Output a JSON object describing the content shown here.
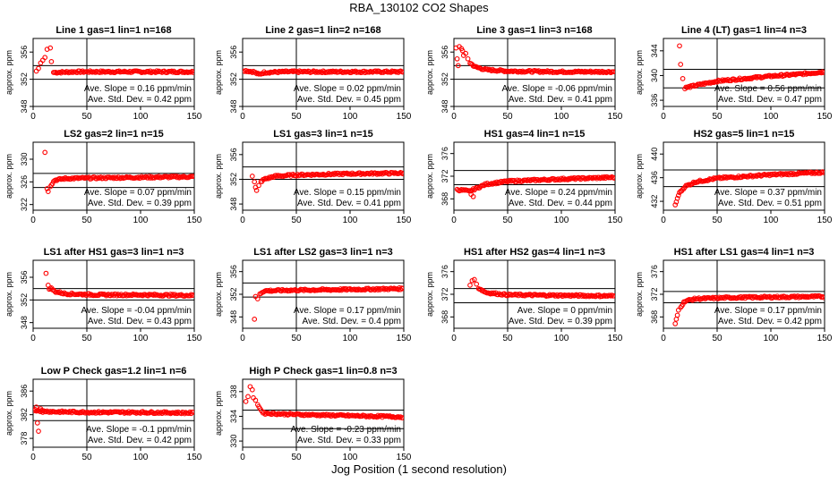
{
  "title": "RBA_130102  CO2 Shapes",
  "xlabel": "Jog Position (1 second resolution)",
  "colors": {
    "points": "#ff0000",
    "axes": "#000000"
  },
  "chart_data": [
    {
      "type": "scatter",
      "title": "Line 1 gas=1 lin=1 n=168",
      "ylabel": "approx. ppm",
      "xlim": [
        0,
        150
      ],
      "ylim": [
        348,
        358
      ],
      "xticks": [
        0,
        50,
        100,
        150
      ],
      "yticks": [
        348,
        352,
        356
      ],
      "hlines": [
        354,
        352
      ],
      "vline": 50,
      "slope_text": "Ave. Slope = 0.16  ppm/min",
      "sd_text": "Ave. Std. Dev. = 0.42  ppm",
      "points": [
        [
          3,
          353.2
        ],
        [
          5,
          353.6
        ],
        [
          7,
          354.4
        ],
        [
          9,
          354.8
        ],
        [
          11,
          355.2
        ],
        [
          13,
          356.4
        ],
        [
          16,
          356.6
        ],
        [
          17,
          354.6
        ],
        [
          19,
          353
        ]
      ],
      "series": [
        [
          20,
          353
        ],
        [
          40,
          353.1
        ],
        [
          60,
          353.1
        ],
        [
          80,
          353.1
        ],
        [
          100,
          353.1
        ],
        [
          120,
          353.1
        ],
        [
          150,
          353.1
        ]
      ]
    },
    {
      "type": "scatter",
      "title": "Line 2 gas=1 lin=2 n=168",
      "ylabel": "approx. ppm",
      "xlim": [
        0,
        150
      ],
      "ylim": [
        348,
        358
      ],
      "xticks": [
        0,
        50,
        100,
        150
      ],
      "yticks": [
        348,
        352,
        356
      ],
      "hlines": [
        354,
        352
      ],
      "vline": 50,
      "slope_text": "Ave. Slope = 0.02  ppm/min",
      "sd_text": "Ave. Std. Dev. = 0.45  ppm",
      "points": [],
      "series": [
        [
          1,
          353.3
        ],
        [
          10,
          353.1
        ],
        [
          15,
          352.7
        ],
        [
          20,
          353
        ],
        [
          40,
          353.1
        ],
        [
          80,
          353.1
        ],
        [
          120,
          353.1
        ],
        [
          150,
          353.1
        ]
      ]
    },
    {
      "type": "scatter",
      "title": "Line 3 gas=1 lin=3 n=168",
      "ylabel": "approx. ppm",
      "xlim": [
        0,
        150
      ],
      "ylim": [
        348,
        358
      ],
      "xticks": [
        0,
        50,
        100,
        150
      ],
      "yticks": [
        348,
        352,
        356
      ],
      "hlines": [
        354,
        352
      ],
      "vline": 50,
      "slope_text": "Ave. Slope = -0.06  ppm/min",
      "sd_text": "Ave. Std. Dev. = 0.41  ppm",
      "points": [
        [
          2,
          356.6
        ],
        [
          3,
          355
        ],
        [
          4,
          354
        ],
        [
          5,
          356.8
        ],
        [
          7,
          356.5
        ],
        [
          8,
          356.2
        ],
        [
          9,
          355.5
        ],
        [
          11,
          355.8
        ],
        [
          13,
          355
        ]
      ],
      "series": [
        [
          15,
          354.4
        ],
        [
          20,
          353.8
        ],
        [
          30,
          353.4
        ],
        [
          50,
          353.2
        ],
        [
          100,
          353.1
        ],
        [
          150,
          353.1
        ]
      ]
    },
    {
      "type": "scatter",
      "title": "Line 4 (LT) gas=1 lin=4 n=3",
      "ylabel": "approx. ppm",
      "xlim": [
        0,
        150
      ],
      "ylim": [
        335,
        346
      ],
      "xticks": [
        0,
        50,
        100,
        150
      ],
      "yticks": [
        336,
        340,
        344
      ],
      "hlines": [
        341,
        338
      ],
      "vline": 50,
      "slope_text": "Ave. Slope = 0.56  ppm/min",
      "sd_text": "Ave. Std. Dev. = 0.47  ppm",
      "points": [
        [
          15,
          344.8
        ],
        [
          16,
          341.8
        ],
        [
          18,
          339.5
        ]
      ],
      "series": [
        [
          20,
          338
        ],
        [
          30,
          338.4
        ],
        [
          50,
          339.1
        ],
        [
          75,
          339.5
        ],
        [
          100,
          339.9
        ],
        [
          125,
          340.2
        ],
        [
          150,
          340.6
        ]
      ]
    },
    {
      "type": "scatter",
      "title": "LS2 gas=2 lin=1 n=15",
      "ylabel": "approx. ppm",
      "xlim": [
        0,
        150
      ],
      "ylim": [
        321,
        333
      ],
      "xticks": [
        0,
        50,
        100,
        150
      ],
      "yticks": [
        322,
        326,
        330
      ],
      "hlines": [
        327.5,
        325
      ],
      "vline": 50,
      "slope_text": "Ave. Slope = 0.07  ppm/min",
      "sd_text": "Ave. Std. Dev. = 0.39  ppm",
      "points": [
        [
          11,
          331.2
        ],
        [
          13,
          324.8
        ],
        [
          14,
          324.3
        ]
      ],
      "series": [
        [
          16,
          325.3
        ],
        [
          20,
          326.3
        ],
        [
          30,
          326.6
        ],
        [
          60,
          326.7
        ],
        [
          100,
          326.8
        ],
        [
          150,
          326.9
        ]
      ]
    },
    {
      "type": "scatter",
      "title": "LS1 gas=3 lin=1 n=15",
      "ylabel": "approx. ppm",
      "xlim": [
        0,
        150
      ],
      "ylim": [
        347,
        358
      ],
      "xticks": [
        0,
        50,
        100,
        150
      ],
      "yticks": [
        348,
        352,
        356
      ],
      "hlines": [
        354,
        352
      ],
      "vline": 50,
      "slope_text": "Ave. Slope = 0.15  ppm/min",
      "sd_text": "Ave. Std. Dev. = 0.41  ppm",
      "points": [
        [
          9,
          352.5
        ],
        [
          11,
          351.6
        ],
        [
          12,
          350.7
        ],
        [
          13,
          350.2
        ],
        [
          15,
          351
        ]
      ],
      "series": [
        [
          17,
          351.6
        ],
        [
          20,
          352
        ],
        [
          30,
          352.5
        ],
        [
          50,
          352.7
        ],
        [
          100,
          352.9
        ],
        [
          150,
          353
        ]
      ]
    },
    {
      "type": "scatter",
      "title": "HS1 gas=4 lin=1 n=15",
      "ylabel": "approx. ppm",
      "xlim": [
        0,
        150
      ],
      "ylim": [
        366,
        378
      ],
      "xticks": [
        0,
        50,
        100,
        150
      ],
      "yticks": [
        368,
        372,
        376
      ],
      "hlines": [
        373,
        370.5
      ],
      "vline": 50,
      "slope_text": "Ave. Slope = 0.24  ppm/min",
      "sd_text": "Ave. Std. Dev. = 0.44  ppm",
      "points": [
        [
          16,
          368.8
        ],
        [
          18,
          368.4
        ]
      ],
      "series": [
        [
          3,
          369.6
        ],
        [
          10,
          369.5
        ],
        [
          14,
          369.3
        ],
        [
          20,
          369.8
        ],
        [
          30,
          370.6
        ],
        [
          50,
          371.1
        ],
        [
          100,
          371.5
        ],
        [
          150,
          371.8
        ]
      ]
    },
    {
      "type": "scatter",
      "title": "HS2 gas=5 lin=1 n=15",
      "ylabel": "approx. ppm",
      "xlim": [
        0,
        150
      ],
      "ylim": [
        430.5,
        442
      ],
      "xticks": [
        0,
        50,
        100,
        150
      ],
      "yticks": [
        432,
        436,
        440
      ],
      "hlines": [
        437.3,
        434.5
      ],
      "vline": 50,
      "slope_text": "Ave. Slope = 0.37  ppm/min",
      "sd_text": "Ave. Std. Dev. = 0.51  ppm",
      "points": [
        [
          11,
          431.4
        ],
        [
          12,
          431.9
        ],
        [
          13,
          432.5
        ],
        [
          14,
          433
        ],
        [
          15,
          433.5
        ]
      ],
      "series": [
        [
          16,
          433.6
        ],
        [
          20,
          434.5
        ],
        [
          30,
          435.3
        ],
        [
          50,
          435.9
        ],
        [
          100,
          436.5
        ],
        [
          150,
          436.9
        ]
      ]
    },
    {
      "type": "scatter",
      "title": "LS1 after HS1 gas=3 lin=1 n=3",
      "ylabel": "approx. ppm",
      "xlim": [
        0,
        150
      ],
      "ylim": [
        347,
        359
      ],
      "xticks": [
        0,
        50,
        100,
        150
      ],
      "yticks": [
        348,
        352,
        356
      ],
      "hlines": [
        354,
        352
      ],
      "vline": 50,
      "slope_text": "Ave. Slope = -0.04  ppm/min",
      "sd_text": "Ave. Std. Dev. = 0.43  ppm",
      "points": [
        [
          12,
          356.7
        ],
        [
          14,
          354.6
        ],
        [
          15,
          353.9
        ]
      ],
      "series": [
        [
          16,
          354.2
        ],
        [
          20,
          353.5
        ],
        [
          30,
          353.1
        ],
        [
          60,
          352.9
        ],
        [
          100,
          352.9
        ],
        [
          150,
          352.8
        ]
      ]
    },
    {
      "type": "scatter",
      "title": "LS1 after LS2 gas=3 lin=1 n=3",
      "ylabel": "approx. ppm",
      "xlim": [
        0,
        150
      ],
      "ylim": [
        346,
        358
      ],
      "xticks": [
        0,
        50,
        100,
        150
      ],
      "yticks": [
        348,
        352,
        356
      ],
      "hlines": [
        354,
        351.5
      ],
      "vline": 50,
      "slope_text": "Ave. Slope = 0.17  ppm/min",
      "sd_text": "Ave. Std. Dev. = 0.4  ppm",
      "points": [
        [
          11,
          347.6
        ],
        [
          12,
          351.6
        ],
        [
          14,
          351.2
        ]
      ],
      "series": [
        [
          16,
          352.1
        ],
        [
          20,
          352.6
        ],
        [
          40,
          352.7
        ],
        [
          80,
          352.8
        ],
        [
          120,
          352.9
        ],
        [
          150,
          353
        ]
      ]
    },
    {
      "type": "scatter",
      "title": "HS1 after HS2 gas=4 lin=1 n=3",
      "ylabel": "approx. ppm",
      "xlim": [
        0,
        150
      ],
      "ylim": [
        366,
        378
      ],
      "xticks": [
        0,
        50,
        100,
        150
      ],
      "yticks": [
        368,
        372,
        376
      ],
      "hlines": [
        373,
        370.5
      ],
      "vline": 50,
      "slope_text": "Ave. Slope = 0  ppm/min",
      "sd_text": "Ave. Std. Dev. = 0.39  ppm",
      "points": [
        [
          15,
          373.6
        ],
        [
          17,
          374.4
        ],
        [
          19,
          374.6
        ],
        [
          21,
          373.8
        ]
      ],
      "series": [
        [
          23,
          373.1
        ],
        [
          30,
          372.3
        ],
        [
          50,
          371.9
        ],
        [
          100,
          371.8
        ],
        [
          150,
          371.7
        ]
      ]
    },
    {
      "type": "scatter",
      "title": "HS1 after LS1 gas=4 lin=1 n=3",
      "ylabel": "approx. ppm",
      "xlim": [
        0,
        150
      ],
      "ylim": [
        366,
        378
      ],
      "xticks": [
        0,
        50,
        100,
        150
      ],
      "yticks": [
        368,
        372,
        376
      ],
      "hlines": [
        372.5,
        370.5
      ],
      "vline": 50,
      "slope_text": "Ave. Slope = 0.17  ppm/min",
      "sd_text": "Ave. Std. Dev. = 0.42  ppm",
      "points": [
        [
          11,
          366.8
        ],
        [
          12,
          367.6
        ],
        [
          13,
          368.3
        ],
        [
          14,
          369.2
        ]
      ],
      "series": [
        [
          16,
          369.8
        ],
        [
          20,
          370.8
        ],
        [
          30,
          371.2
        ],
        [
          60,
          371.4
        ],
        [
          100,
          371.5
        ],
        [
          150,
          371.6
        ]
      ]
    },
    {
      "type": "scatter",
      "title": "Low P Check gas=1.2 lin=1 n=6",
      "ylabel": "approx. ppm",
      "xlim": [
        0,
        150
      ],
      "ylim": [
        376.5,
        388
      ],
      "xticks": [
        0,
        50,
        100,
        150
      ],
      "yticks": [
        378,
        382,
        386
      ],
      "hlines": [
        383.5,
        381
      ],
      "vline": 50,
      "slope_text": "Ave. Slope = -0.1  ppm/min",
      "sd_text": "Ave. Std. Dev. = 0.42  ppm",
      "points": [
        [
          3,
          383.3
        ],
        [
          4,
          380.6
        ],
        [
          5,
          379.2
        ],
        [
          7,
          383
        ],
        [
          9,
          382.4
        ]
      ],
      "series": [
        [
          1,
          382.8
        ],
        [
          10,
          382.6
        ],
        [
          20,
          382.5
        ],
        [
          60,
          382.4
        ],
        [
          100,
          382.4
        ],
        [
          150,
          382.3
        ]
      ]
    },
    {
      "type": "scatter",
      "title": "High P Check gas=1 lin=0.8 n=3",
      "ylabel": "approx. ppm",
      "xlim": [
        0,
        150
      ],
      "ylim": [
        329,
        340
      ],
      "xticks": [
        0,
        50,
        100,
        150
      ],
      "yticks": [
        330,
        334,
        338
      ],
      "hlines": [
        335,
        332
      ],
      "vline": 50,
      "slope_text": "Ave. Slope = -0.23  ppm/min",
      "sd_text": "Ave. Std. Dev. = 0.33  ppm",
      "points": [
        [
          3,
          336.4
        ],
        [
          5,
          337.2
        ],
        [
          7,
          338.8
        ],
        [
          9,
          338.3
        ],
        [
          10,
          337
        ],
        [
          12,
          336.6
        ]
      ],
      "series": [
        [
          14,
          336
        ],
        [
          17,
          335
        ],
        [
          20,
          334.5
        ],
        [
          50,
          334.3
        ],
        [
          100,
          334.1
        ],
        [
          150,
          333.9
        ]
      ]
    }
  ]
}
